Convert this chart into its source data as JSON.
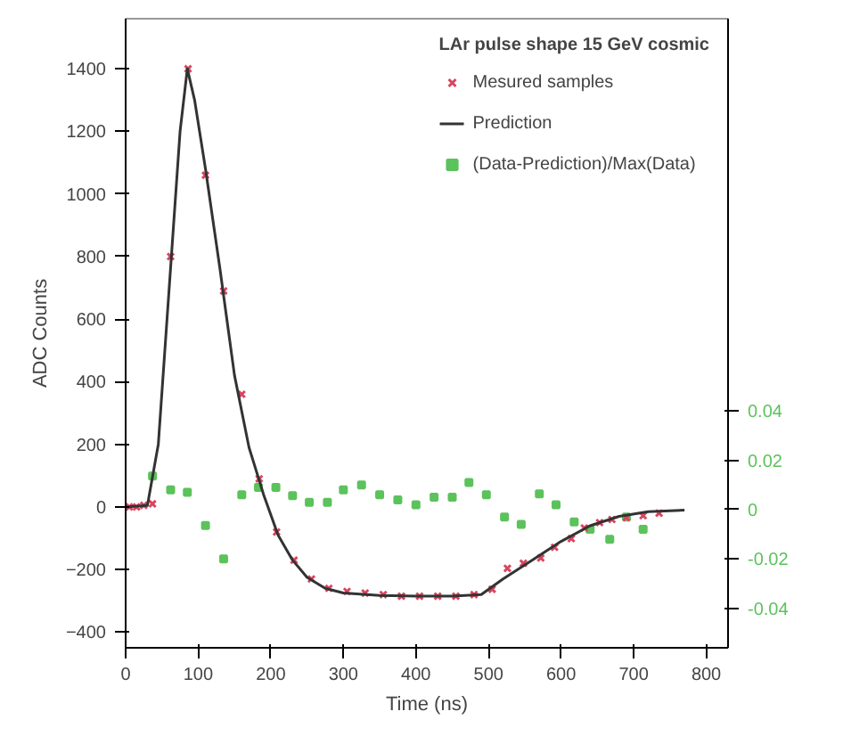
{
  "chart_data": {
    "type": "scatter",
    "legend_title": "LAr pulse shape 15 GeV cosmic",
    "xlabel": "Time (ns)",
    "ylabel": "ADC Counts",
    "xlim": [
      0,
      830
    ],
    "ylim": [
      -450,
      1560
    ],
    "xticks": [
      0,
      100,
      200,
      300,
      400,
      500,
      600,
      700,
      800
    ],
    "yticks": [
      -400,
      -200,
      0,
      200,
      400,
      600,
      800,
      1000,
      1200,
      1400
    ],
    "y2lim": [
      -0.056,
      0.199
    ],
    "y2ticks": [
      -0.04,
      -0.02,
      0,
      0.02,
      0.04
    ],
    "legend": "top right",
    "grid": false,
    "series": [
      {
        "name": "Mesured samples",
        "color": "#d9455f",
        "marker": "cross",
        "x": [
          5,
          15,
          25,
          37,
          62,
          86,
          110,
          135,
          160,
          184,
          208,
          232,
          256,
          280,
          305,
          330,
          355,
          380,
          405,
          430,
          455,
          480,
          505,
          526,
          548,
          572,
          591,
          614,
          632,
          653,
          670,
          690,
          713,
          735
        ],
        "values": [
          0,
          0,
          5,
          10,
          800,
          1400,
          1060,
          690,
          360,
          90,
          -80,
          -170,
          -230,
          -260,
          -270,
          -275,
          -280,
          -285,
          -285,
          -285,
          -285,
          -280,
          -263,
          -196,
          -180,
          -163,
          -129,
          -101,
          -67,
          -50,
          -40,
          -34,
          -28,
          -20
        ]
      },
      {
        "name": "Prediction",
        "color": "#333333",
        "type": "line",
        "x": [
          0,
          30,
          45,
          60,
          75,
          85,
          95,
          110,
          130,
          150,
          170,
          190,
          210,
          230,
          250,
          275,
          300,
          350,
          400,
          450,
          490,
          520,
          560,
          600,
          640,
          680,
          720,
          770
        ],
        "values": [
          0,
          5,
          200,
          700,
          1200,
          1400,
          1300,
          1080,
          760,
          420,
          190,
          40,
          -90,
          -170,
          -225,
          -260,
          -275,
          -283,
          -285,
          -285,
          -280,
          -230,
          -170,
          -110,
          -60,
          -30,
          -15,
          -10
        ]
      },
      {
        "name": "(Data-Prediction)/Max(Data)",
        "color": "#5cc25c",
        "marker": "square",
        "axis": "y2",
        "x": [
          37,
          62,
          85,
          110,
          135,
          160,
          183,
          207,
          230,
          253,
          278,
          300,
          325,
          350,
          375,
          400,
          425,
          450,
          473,
          497,
          522,
          545,
          570,
          593,
          618,
          640,
          667,
          690,
          713
        ],
        "values": [
          0.0136,
          0.008,
          0.007,
          -0.0064,
          -0.02,
          0.006,
          0.009,
          0.009,
          0.0057,
          0.003,
          0.003,
          0.008,
          0.01,
          0.006,
          0.004,
          0.002,
          0.005,
          0.005,
          0.011,
          0.006,
          -0.003,
          -0.006,
          0.0064,
          0.002,
          -0.005,
          -0.008,
          -0.012,
          -0.003,
          -0.008
        ]
      }
    ]
  }
}
